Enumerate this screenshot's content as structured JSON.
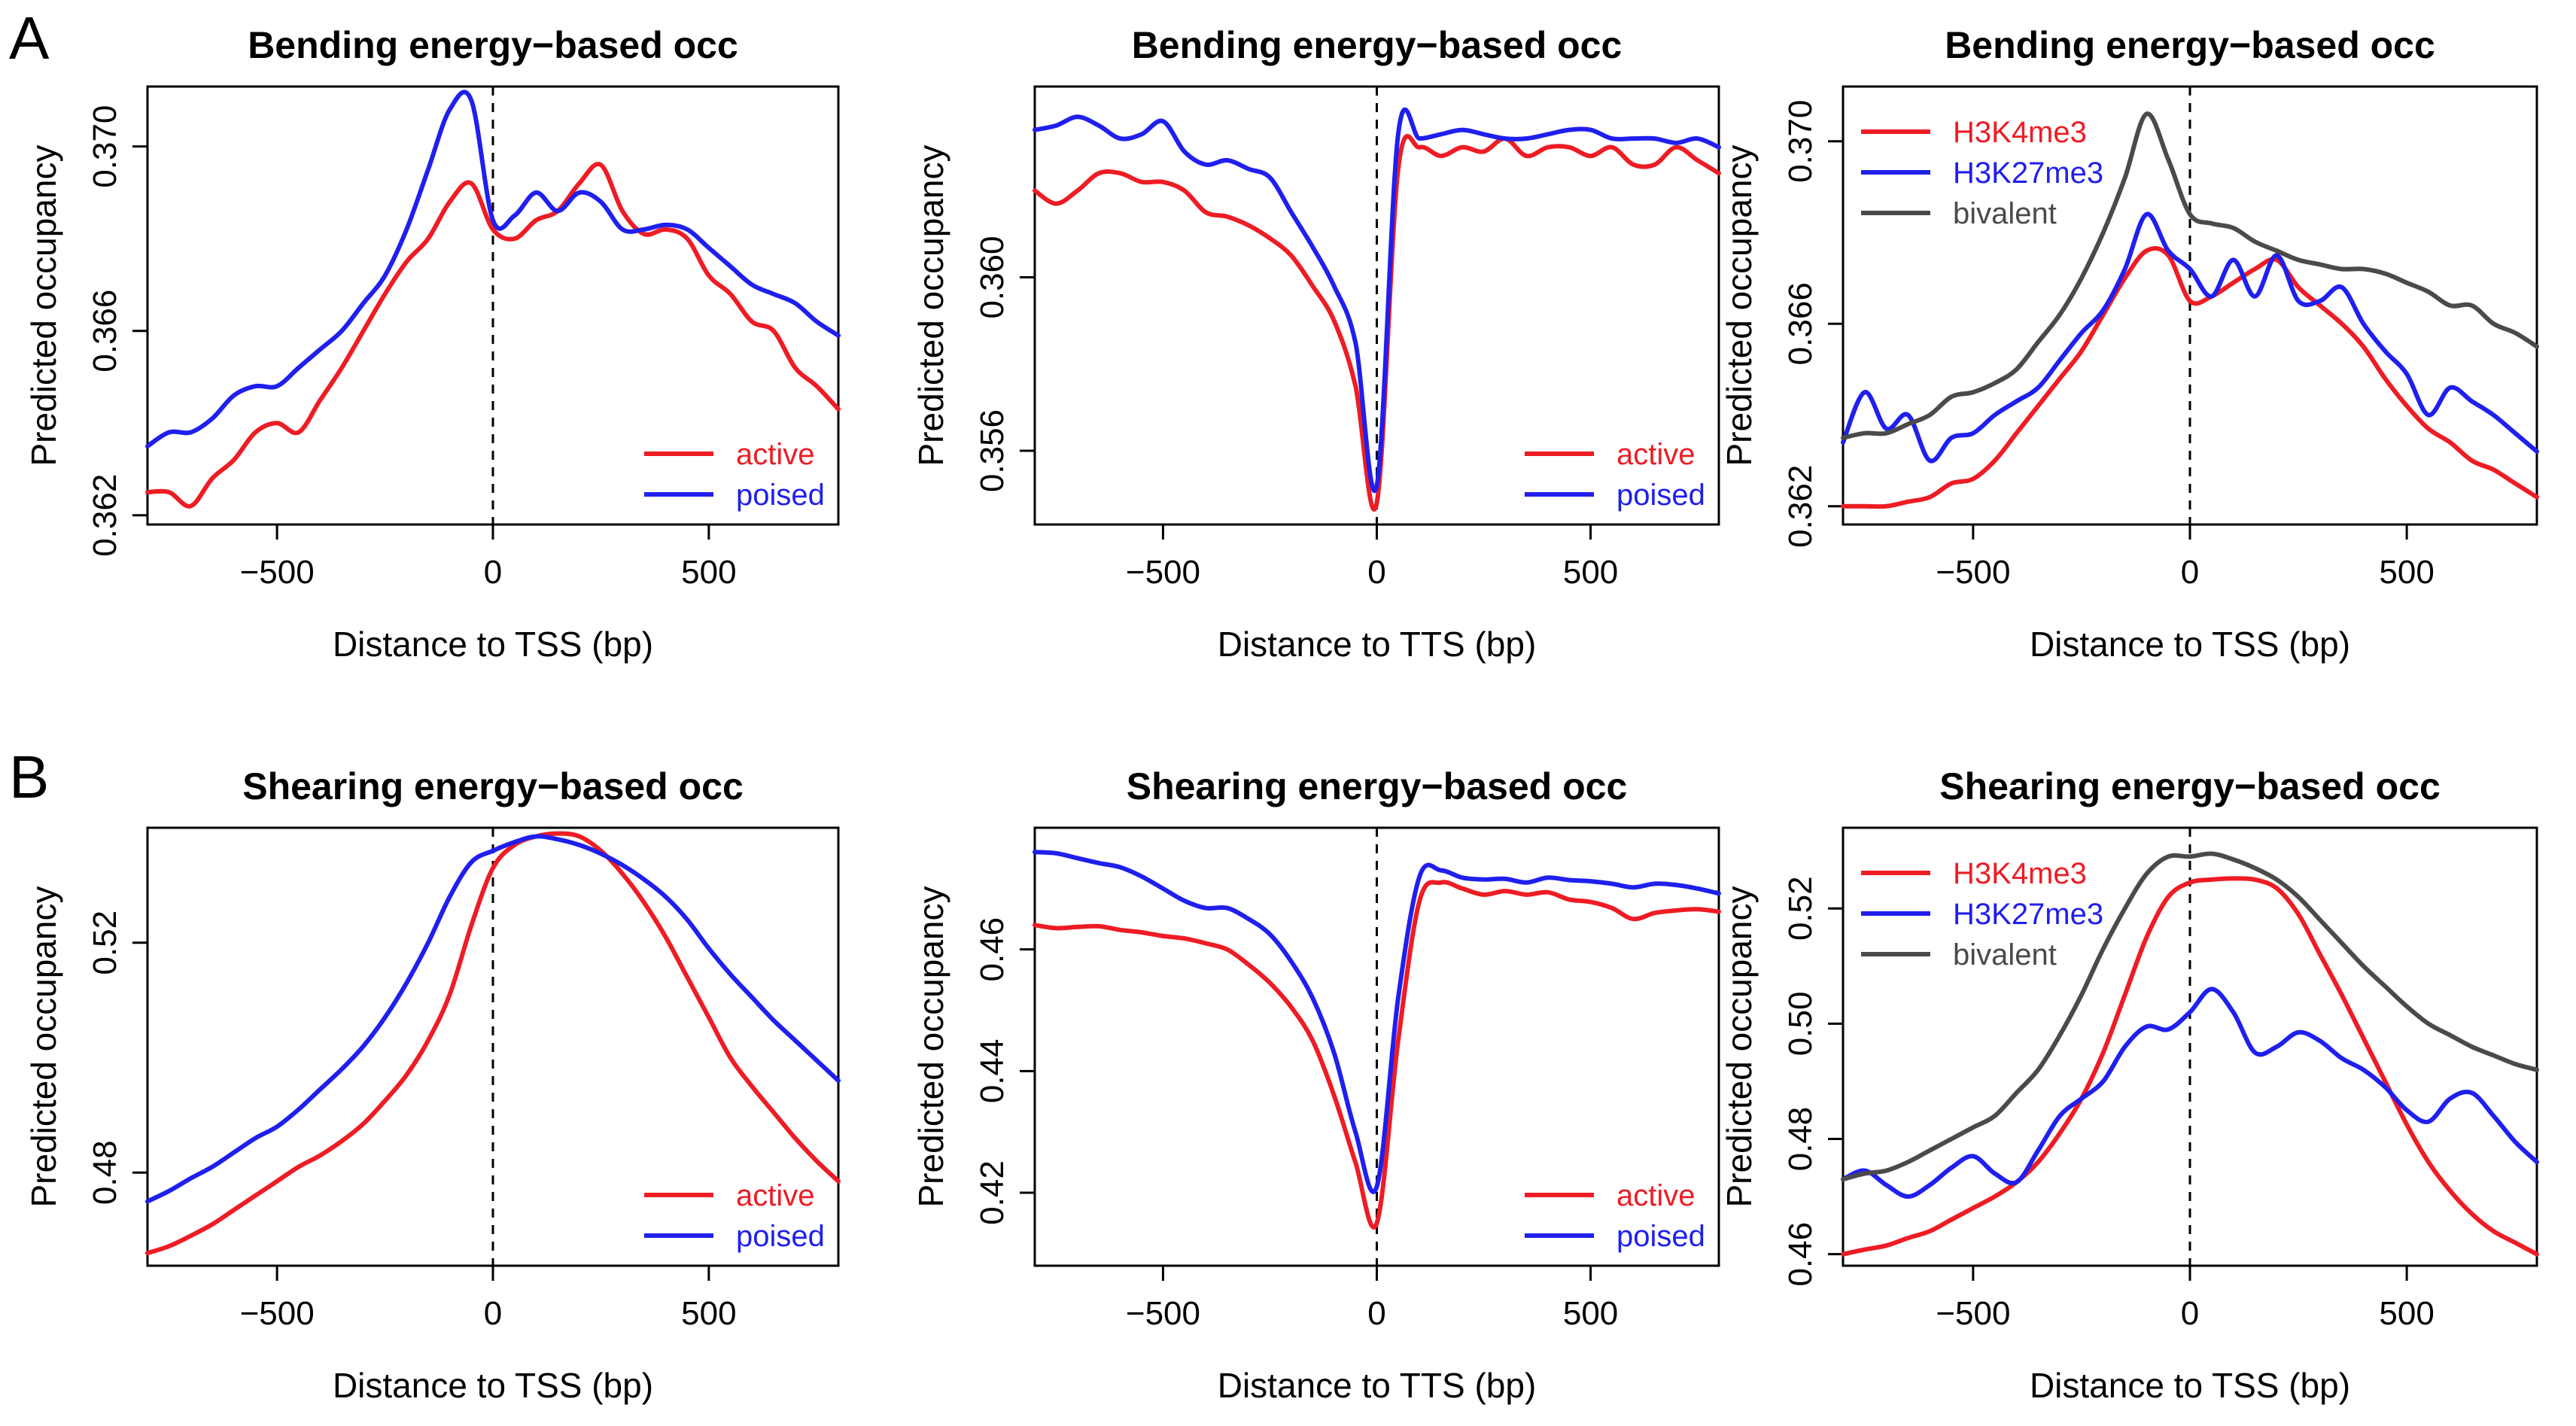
{
  "panel_labels": [
    "A",
    "B"
  ],
  "colors": {
    "active": "#ee1c24",
    "poised": "#1f1fee",
    "H3K4me3": "#ee1c24",
    "H3K27me3": "#1f1fee",
    "bivalent": "#4a4a4a"
  },
  "chart_data": [
    {
      "type": "line",
      "title": "Bending energy−based occ",
      "xlabel": "Distance to TSS (bp)",
      "ylabel": "Predicted occupancy",
      "xlim": [
        -800,
        800
      ],
      "ylim": [
        0.3618,
        0.3713
      ],
      "xticks": [
        -500,
        0,
        500
      ],
      "xtick_labels": [
        "−500",
        "0",
        "500"
      ],
      "yticks": [
        0.362,
        0.366,
        0.37
      ],
      "ytick_labels": [
        "0.362",
        "0.366",
        "0.370"
      ],
      "legend_position": "bottom-right",
      "legend_order": [
        "active",
        "poised"
      ],
      "x": [
        -800,
        -750,
        -700,
        -650,
        -600,
        -550,
        -500,
        -450,
        -400,
        -350,
        -300,
        -250,
        -200,
        -150,
        -100,
        -50,
        0,
        50,
        100,
        150,
        200,
        250,
        300,
        350,
        400,
        450,
        500,
        550,
        600,
        650,
        700,
        750,
        800
      ],
      "series": [
        {
          "name": "active",
          "values": [
            0.3625,
            0.3625,
            0.3622,
            0.3628,
            0.3632,
            0.3638,
            0.364,
            0.3638,
            0.3645,
            0.3652,
            0.366,
            0.3668,
            0.3675,
            0.368,
            0.3688,
            0.3692,
            0.3682,
            0.368,
            0.3684,
            0.3686,
            0.3692,
            0.3696,
            0.3686,
            0.3681,
            0.3682,
            0.368,
            0.3672,
            0.3668,
            0.3662,
            0.366,
            0.3652,
            0.3648,
            0.3643
          ]
        },
        {
          "name": "poised",
          "values": [
            0.3635,
            0.3638,
            0.3638,
            0.3641,
            0.3646,
            0.3648,
            0.3648,
            0.3652,
            0.3656,
            0.366,
            0.3666,
            0.3672,
            0.3682,
            0.3695,
            0.3708,
            0.371,
            0.3684,
            0.3685,
            0.369,
            0.3686,
            0.369,
            0.3688,
            0.3682,
            0.3682,
            0.3683,
            0.3682,
            0.3678,
            0.3674,
            0.367,
            0.3668,
            0.3666,
            0.3662,
            0.3659
          ]
        }
      ]
    },
    {
      "type": "line",
      "title": "Bending energy−based occ",
      "xlabel": "Distance to TTS (bp)",
      "ylabel": "Predicted occupancy",
      "xlim": [
        -800,
        800
      ],
      "ylim": [
        0.3543,
        0.3644
      ],
      "xticks": [
        -500,
        0,
        500
      ],
      "xtick_labels": [
        "−500",
        "0",
        "500"
      ],
      "yticks": [
        0.356,
        0.36
      ],
      "ytick_labels": [
        "0.356",
        "0.360"
      ],
      "legend_position": "bottom-right",
      "legend_order": [
        "active",
        "poised"
      ],
      "x": [
        -800,
        -750,
        -700,
        -650,
        -600,
        -550,
        -500,
        -450,
        -400,
        -350,
        -300,
        -250,
        -200,
        -150,
        -100,
        -50,
        0,
        50,
        100,
        150,
        200,
        250,
        300,
        350,
        400,
        450,
        500,
        550,
        600,
        650,
        700,
        750,
        800
      ],
      "series": [
        {
          "name": "active",
          "values": [
            0.362,
            0.3617,
            0.362,
            0.3624,
            0.3624,
            0.3622,
            0.3622,
            0.362,
            0.3615,
            0.3614,
            0.3612,
            0.3609,
            0.3605,
            0.3598,
            0.359,
            0.3575,
            0.3548,
            0.3625,
            0.363,
            0.3628,
            0.363,
            0.3629,
            0.3632,
            0.3628,
            0.363,
            0.363,
            0.3628,
            0.363,
            0.3626,
            0.3626,
            0.363,
            0.3627,
            0.3624
          ]
        },
        {
          "name": "poised",
          "values": [
            0.3634,
            0.3635,
            0.3637,
            0.3635,
            0.3632,
            0.3633,
            0.3636,
            0.3629,
            0.3626,
            0.3627,
            0.3625,
            0.3623,
            0.3615,
            0.3607,
            0.3598,
            0.3585,
            0.3552,
            0.3633,
            0.3632,
            0.3633,
            0.3634,
            0.3633,
            0.3632,
            0.3632,
            0.3633,
            0.3634,
            0.3634,
            0.3632,
            0.3632,
            0.3632,
            0.3631,
            0.3632,
            0.363
          ]
        }
      ]
    },
    {
      "type": "line",
      "title": "Bending energy−based occ",
      "xlabel": "Distance to TSS (bp)",
      "ylabel": "Predicted occupancy",
      "xlim": [
        -800,
        800
      ],
      "ylim": [
        0.3616,
        0.3712
      ],
      "xticks": [
        -500,
        0,
        500
      ],
      "xtick_labels": [
        "−500",
        "0",
        "500"
      ],
      "yticks": [
        0.362,
        0.366,
        0.37
      ],
      "ytick_labels": [
        "0.362",
        "0.366",
        "0.370"
      ],
      "legend_position": "top-left",
      "legend_order": [
        "H3K4me3",
        "H3K27me3",
        "bivalent"
      ],
      "x": [
        -800,
        -750,
        -700,
        -650,
        -600,
        -550,
        -500,
        -450,
        -400,
        -350,
        -300,
        -250,
        -200,
        -150,
        -100,
        -50,
        0,
        50,
        100,
        150,
        200,
        250,
        300,
        350,
        400,
        450,
        500,
        550,
        600,
        650,
        700,
        750,
        800
      ],
      "series": [
        {
          "name": "H3K4me3",
          "values": [
            0.362,
            0.362,
            0.362,
            0.3621,
            0.3622,
            0.3625,
            0.3626,
            0.363,
            0.3636,
            0.3642,
            0.3648,
            0.3654,
            0.3662,
            0.367,
            0.3676,
            0.3675,
            0.3665,
            0.3666,
            0.3669,
            0.3672,
            0.3674,
            0.3668,
            0.3664,
            0.366,
            0.3655,
            0.3648,
            0.3642,
            0.3637,
            0.3634,
            0.363,
            0.3628,
            0.3625,
            0.3622
          ]
        },
        {
          "name": "H3K27me3",
          "values": [
            0.3634,
            0.3645,
            0.3637,
            0.364,
            0.363,
            0.3635,
            0.3636,
            0.364,
            0.3643,
            0.3646,
            0.3652,
            0.3658,
            0.3663,
            0.3672,
            0.3684,
            0.3676,
            0.3672,
            0.3666,
            0.3674,
            0.3666,
            0.3675,
            0.3665,
            0.3665,
            0.3668,
            0.366,
            0.3654,
            0.3649,
            0.364,
            0.3646,
            0.3643,
            0.364,
            0.3636,
            0.3632
          ]
        },
        {
          "name": "bivalent",
          "values": [
            0.3635,
            0.3636,
            0.3636,
            0.3638,
            0.364,
            0.3644,
            0.3645,
            0.3647,
            0.365,
            0.3656,
            0.3662,
            0.367,
            0.368,
            0.3692,
            0.3706,
            0.3696,
            0.3684,
            0.3682,
            0.3681,
            0.3678,
            0.3676,
            0.3674,
            0.3673,
            0.3672,
            0.3672,
            0.3671,
            0.3669,
            0.3667,
            0.3664,
            0.3664,
            0.366,
            0.3658,
            0.3655
          ]
        }
      ]
    },
    {
      "type": "line",
      "title": "Shearing energy−based occ",
      "xlabel": "Distance to TSS (bp)",
      "ylabel": "Predicted occupancy",
      "xlim": [
        -800,
        800
      ],
      "ylim": [
        0.4638,
        0.54
      ],
      "xticks": [
        -500,
        0,
        500
      ],
      "xtick_labels": [
        "−500",
        "0",
        "500"
      ],
      "yticks": [
        0.48,
        0.52
      ],
      "ytick_labels": [
        "0.48",
        "0.52"
      ],
      "legend_position": "bottom-right",
      "legend_order": [
        "active",
        "poised"
      ],
      "x": [
        -800,
        -750,
        -700,
        -650,
        -600,
        -550,
        -500,
        -450,
        -400,
        -350,
        -300,
        -250,
        -200,
        -150,
        -100,
        -50,
        0,
        50,
        100,
        150,
        200,
        250,
        300,
        350,
        400,
        450,
        500,
        550,
        600,
        650,
        700,
        750,
        800
      ],
      "series": [
        {
          "name": "active",
          "values": [
            0.466,
            0.4672,
            0.469,
            0.471,
            0.4735,
            0.476,
            0.4785,
            0.481,
            0.483,
            0.4855,
            0.4885,
            0.4925,
            0.497,
            0.503,
            0.511,
            0.523,
            0.533,
            0.537,
            0.5385,
            0.539,
            0.5385,
            0.536,
            0.532,
            0.527,
            0.521,
            0.514,
            0.507,
            0.5,
            0.495,
            0.4905,
            0.486,
            0.482,
            0.4785
          ]
        },
        {
          "name": "poised",
          "values": [
            0.475,
            0.4768,
            0.479,
            0.481,
            0.4835,
            0.486,
            0.488,
            0.491,
            0.4945,
            0.498,
            0.502,
            0.507,
            0.513,
            0.52,
            0.528,
            0.534,
            0.536,
            0.5375,
            0.5385,
            0.538,
            0.537,
            0.5355,
            0.5335,
            0.531,
            0.528,
            0.524,
            0.519,
            0.5145,
            0.5105,
            0.5065,
            0.503,
            0.4995,
            0.496
          ]
        }
      ]
    },
    {
      "type": "line",
      "title": "Shearing energy−based occ",
      "xlabel": "Distance to TTS (bp)",
      "ylabel": "Predicted occupancy",
      "xlim": [
        -800,
        800
      ],
      "ylim": [
        0.408,
        0.48
      ],
      "xticks": [
        -500,
        0,
        500
      ],
      "xtick_labels": [
        "−500",
        "0",
        "500"
      ],
      "yticks": [
        0.42,
        0.44,
        0.46
      ],
      "ytick_labels": [
        "0.42",
        "0.44",
        "0.46"
      ],
      "legend_position": "bottom-right",
      "legend_order": [
        "active",
        "poised"
      ],
      "x": [
        -800,
        -750,
        -700,
        -650,
        -600,
        -550,
        -500,
        -450,
        -400,
        -350,
        -300,
        -250,
        -200,
        -150,
        -100,
        -50,
        0,
        50,
        100,
        150,
        200,
        250,
        300,
        350,
        400,
        450,
        500,
        550,
        600,
        650,
        700,
        750,
        800
      ],
      "series": [
        {
          "name": "active",
          "values": [
            0.464,
            0.4635,
            0.4637,
            0.4638,
            0.4632,
            0.4628,
            0.4622,
            0.4618,
            0.461,
            0.46,
            0.4575,
            0.4545,
            0.4505,
            0.445,
            0.436,
            0.425,
            0.415,
            0.445,
            0.468,
            0.471,
            0.47,
            0.469,
            0.4696,
            0.469,
            0.4694,
            0.4682,
            0.4678,
            0.4668,
            0.465,
            0.466,
            0.4664,
            0.4666,
            0.4662
          ]
        },
        {
          "name": "poised",
          "values": [
            0.476,
            0.4758,
            0.475,
            0.4742,
            0.4735,
            0.472,
            0.47,
            0.468,
            0.4668,
            0.4668,
            0.465,
            0.4625,
            0.458,
            0.452,
            0.443,
            0.43,
            0.421,
            0.452,
            0.472,
            0.473,
            0.4718,
            0.4715,
            0.4716,
            0.471,
            0.4718,
            0.4714,
            0.4712,
            0.4708,
            0.4702,
            0.4708,
            0.4706,
            0.47,
            0.4692
          ]
        }
      ]
    },
    {
      "type": "line",
      "title": "Shearing energy−based occ",
      "xlabel": "Distance to TSS (bp)",
      "ylabel": "Predicted occupancy",
      "xlim": [
        -800,
        800
      ],
      "ylim": [
        0.458,
        0.534
      ],
      "xticks": [
        -500,
        0,
        500
      ],
      "xtick_labels": [
        "−500",
        "0",
        "500"
      ],
      "yticks": [
        0.46,
        0.48,
        0.5,
        0.52
      ],
      "ytick_labels": [
        "0.46",
        "0.48",
        "0.50",
        "0.52"
      ],
      "legend_position": "top-left",
      "legend_order": [
        "H3K4me3",
        "H3K27me3",
        "bivalent"
      ],
      "x": [
        -800,
        -750,
        -700,
        -650,
        -600,
        -550,
        -500,
        -450,
        -400,
        -350,
        -300,
        -250,
        -200,
        -150,
        -100,
        -50,
        0,
        50,
        100,
        150,
        200,
        250,
        300,
        350,
        400,
        450,
        500,
        550,
        600,
        650,
        700,
        750,
        800
      ],
      "series": [
        {
          "name": "H3K4me3",
          "values": [
            0.46,
            0.4608,
            0.4615,
            0.4628,
            0.464,
            0.466,
            0.468,
            0.47,
            0.4725,
            0.476,
            0.481,
            0.487,
            0.495,
            0.505,
            0.515,
            0.522,
            0.5245,
            0.525,
            0.5252,
            0.525,
            0.5235,
            0.519,
            0.512,
            0.505,
            0.4975,
            0.49,
            0.4825,
            0.476,
            0.471,
            0.467,
            0.464,
            0.462,
            0.46
          ]
        },
        {
          "name": "H3K27me3",
          "values": [
            0.473,
            0.4745,
            0.472,
            0.47,
            0.472,
            0.475,
            0.477,
            0.474,
            0.4725,
            0.478,
            0.484,
            0.487,
            0.49,
            0.496,
            0.4995,
            0.499,
            0.502,
            0.506,
            0.502,
            0.495,
            0.496,
            0.4985,
            0.497,
            0.494,
            0.492,
            0.489,
            0.485,
            0.483,
            0.487,
            0.488,
            0.484,
            0.4795,
            0.476
          ]
        },
        {
          "name": "bivalent",
          "values": [
            0.473,
            0.474,
            0.4745,
            0.476,
            0.478,
            0.48,
            0.482,
            0.484,
            0.488,
            0.492,
            0.498,
            0.505,
            0.513,
            0.52,
            0.526,
            0.529,
            0.529,
            0.5295,
            0.5285,
            0.527,
            0.525,
            0.522,
            0.518,
            0.514,
            0.51,
            0.5065,
            0.503,
            0.5,
            0.498,
            0.496,
            0.4945,
            0.493,
            0.492
          ]
        }
      ]
    }
  ]
}
